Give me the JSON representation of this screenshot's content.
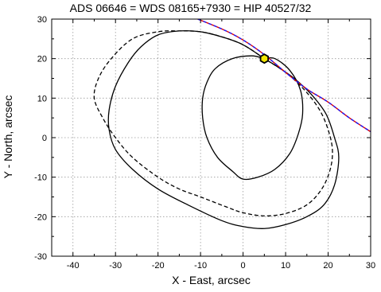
{
  "chart_data": {
    "type": "scatter",
    "title": "ADS 06646 = WDS 08165+7930 = HIP 40527/32",
    "xlabel": "X - East, arcsec",
    "ylabel": "Y - North, arcsec",
    "xlim": [
      -45,
      30
    ],
    "ylim": [
      -30,
      30
    ],
    "xticks": [
      -40,
      -30,
      -20,
      -10,
      0,
      10,
      20,
      30
    ],
    "yticks": [
      -30,
      -20,
      -10,
      0,
      10,
      20,
      30
    ],
    "grid": true,
    "series": [
      {
        "style": "solid",
        "color": "#000000",
        "points": [
          [
            5,
            20
          ],
          [
            2,
            20.7
          ],
          [
            -2.5,
            20
          ],
          [
            -6.5,
            17.5
          ],
          [
            -8.5,
            14
          ],
          [
            -9.5,
            10
          ],
          [
            -9.5,
            5
          ],
          [
            -8.5,
            0
          ],
          [
            -6,
            -5
          ],
          [
            -2.5,
            -8.5
          ],
          [
            0,
            -10.5
          ],
          [
            3.5,
            -10
          ],
          [
            7.5,
            -8
          ],
          [
            11,
            -4
          ],
          [
            13,
            1
          ],
          [
            14,
            6
          ],
          [
            13.5,
            12
          ],
          [
            11,
            17
          ],
          [
            7.5,
            20
          ],
          [
            5,
            20
          ]
        ]
      },
      {
        "style": "solid",
        "color": "#000000",
        "points": [
          [
            5,
            20
          ],
          [
            0,
            23.5
          ],
          [
            -5,
            25.5
          ],
          [
            -10,
            26.8
          ],
          [
            -15,
            27
          ],
          [
            -20,
            26
          ],
          [
            -24,
            23
          ],
          [
            -27,
            19
          ],
          [
            -30,
            13
          ],
          [
            -31.5,
            7
          ],
          [
            -31.5,
            2
          ],
          [
            -30,
            -3
          ],
          [
            -26,
            -8
          ],
          [
            -20,
            -13
          ],
          [
            -13,
            -17
          ],
          [
            -5,
            -21
          ],
          [
            0,
            -22.5
          ],
          [
            5,
            -23
          ],
          [
            10,
            -22
          ],
          [
            15,
            -20
          ],
          [
            19,
            -17
          ],
          [
            21.5,
            -12
          ],
          [
            22.5,
            -5
          ],
          [
            21.5,
            0
          ],
          [
            19.5,
            6
          ],
          [
            16,
            11
          ],
          [
            12,
            15
          ],
          [
            8,
            18
          ],
          [
            5,
            20
          ]
        ]
      },
      {
        "style": "dashed",
        "color": "#000000",
        "points": [
          [
            5,
            20
          ],
          [
            0,
            23.5
          ],
          [
            -5,
            25.5
          ],
          [
            -10,
            26.8
          ],
          [
            -15,
            27
          ],
          [
            -20,
            26.8
          ],
          [
            -26,
            25
          ],
          [
            -31,
            20
          ],
          [
            -34,
            15
          ],
          [
            -35,
            10
          ],
          [
            -33,
            5
          ],
          [
            -30,
            0
          ],
          [
            -26,
            -5
          ],
          [
            -20,
            -10
          ],
          [
            -15,
            -13
          ],
          [
            -10,
            -15
          ],
          [
            -4,
            -17.5
          ],
          [
            0,
            -19
          ],
          [
            5,
            -19.8
          ],
          [
            10,
            -19.2
          ],
          [
            15,
            -17
          ],
          [
            18.5,
            -13
          ],
          [
            20.5,
            -8
          ],
          [
            21,
            -3
          ],
          [
            20,
            2
          ],
          [
            18,
            7
          ],
          [
            14.5,
            12
          ],
          [
            10,
            16.5
          ],
          [
            5,
            20
          ]
        ]
      },
      {
        "style": "solid",
        "color": "#e00000",
        "points": [
          [
            -13,
            31
          ],
          [
            -5,
            27.5
          ],
          [
            0,
            24.7
          ],
          [
            5,
            21
          ],
          [
            10,
            16.5
          ],
          [
            15,
            12.3
          ],
          [
            20,
            9
          ],
          [
            25,
            5
          ],
          [
            30,
            1.5
          ]
        ]
      },
      {
        "style": "dashed",
        "color": "#1a1aff",
        "points": [
          [
            -13,
            31
          ],
          [
            -5,
            27.5
          ],
          [
            0,
            24.7
          ],
          [
            5,
            21
          ],
          [
            10,
            16.5
          ],
          [
            15,
            12.3
          ],
          [
            20,
            9
          ],
          [
            25,
            5
          ],
          [
            30,
            1.5
          ]
        ]
      }
    ],
    "marker": {
      "x": 5,
      "y": 20,
      "fill": "#f2e600",
      "stroke": "#000000"
    }
  }
}
